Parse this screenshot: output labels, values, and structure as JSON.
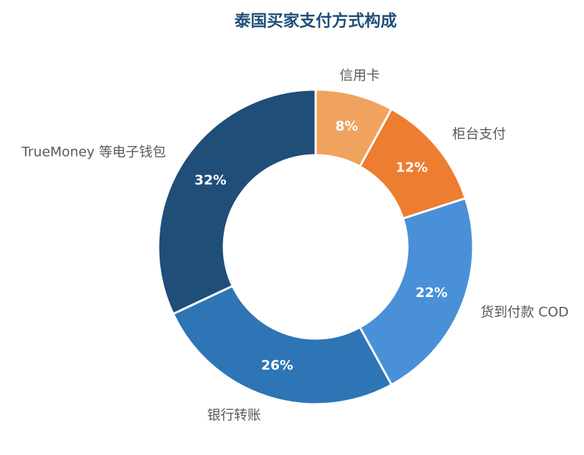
{
  "chart_data": {
    "type": "pie",
    "donut": true,
    "title": "泰国买家支付方式构成",
    "slices": [
      {
        "label": "信用卡",
        "value": 8,
        "pct_label": "8%",
        "color": "#f0a35e"
      },
      {
        "label": "柜台支付",
        "value": 12,
        "pct_label": "12%",
        "color": "#ed7d31"
      },
      {
        "label": "货到付款 COD",
        "value": 22,
        "pct_label": "22%",
        "color": "#4a90d9"
      },
      {
        "label": "银行转账",
        "value": 26,
        "pct_label": "26%",
        "color": "#2e75b6"
      },
      {
        "label": "TrueMoney 等电子钱包",
        "value": 32,
        "pct_label": "32%",
        "color": "#1f4e79"
      }
    ],
    "start_angle": "12 o'clock",
    "direction": "clockwise",
    "legend": "none"
  }
}
